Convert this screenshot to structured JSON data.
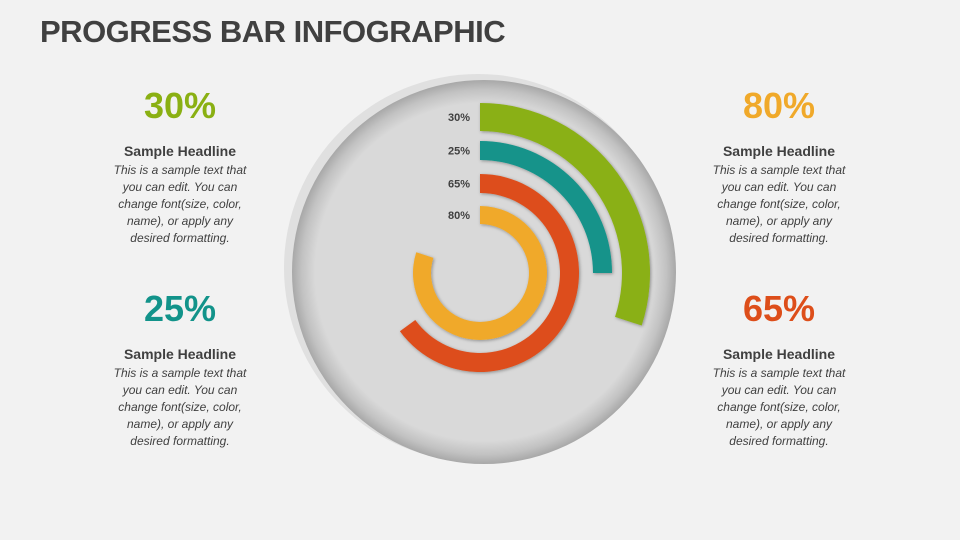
{
  "title": "PROGRESS BAR INFOGRAPHIC",
  "blocks": [
    {
      "percent": "30%",
      "headline": "Sample Headline",
      "lines": [
        "This is a sample text that",
        "you can edit. You can",
        "change font(size, color,",
        "name), or apply any",
        "desired formatting."
      ],
      "color": "#8ab013"
    },
    {
      "percent": "25%",
      "headline": "Sample Headline",
      "lines": [
        "This is a sample text that",
        "you can edit. You can",
        "change font(size, color,",
        "name), or apply any",
        "desired formatting."
      ],
      "color": "#12938a"
    },
    {
      "percent": "80%",
      "headline": "Sample Headline",
      "lines": [
        "This is a sample text that",
        "you can edit. You can",
        "change font(size, color,",
        "name), or apply any",
        "desired formatting."
      ],
      "color": "#f0a92a"
    },
    {
      "percent": "65%",
      "headline": "Sample Headline",
      "lines": [
        "This is a sample text that",
        "you can edit. You can",
        "change font(size, color,",
        "name), or apply any",
        "desired formatting."
      ],
      "color": "#dd4e1a"
    }
  ],
  "chart_data": {
    "type": "radial-bar",
    "title": "",
    "categories": [
      "30%",
      "25%",
      "65%",
      "80%"
    ],
    "values": [
      30,
      25,
      65,
      80
    ],
    "colors": [
      "#8ab013",
      "#12938a",
      "#dd4e1a",
      "#f0a92a"
    ],
    "range": [
      0,
      100
    ]
  }
}
